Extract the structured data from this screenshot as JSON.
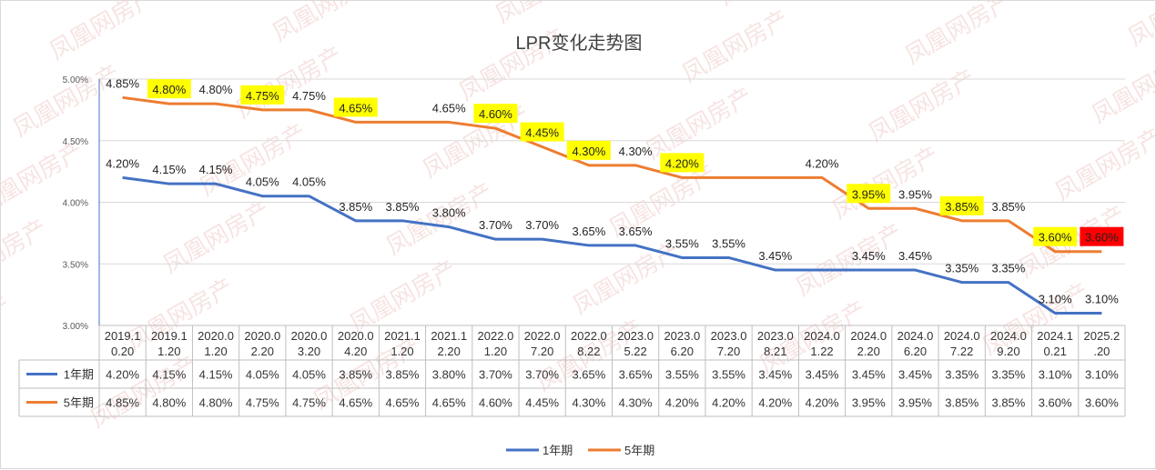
{
  "chart_data": {
    "type": "line",
    "title": "LPR变化走势图",
    "xlabel": "",
    "ylabel": "",
    "ylim": [
      3.0,
      5.0
    ],
    "yticks": [
      "3.00%",
      "3.50%",
      "4.00%",
      "4.50%",
      "5.00%"
    ],
    "categories": [
      [
        "2019.1",
        "0.20"
      ],
      [
        "2019.1",
        "1.20"
      ],
      [
        "2020.0",
        "1.20"
      ],
      [
        "2020.0",
        "2.20"
      ],
      [
        "2020.0",
        "3.20"
      ],
      [
        "2020.0",
        "4.20"
      ],
      [
        "2021.1",
        "1.20"
      ],
      [
        "2021.1",
        "2.20"
      ],
      [
        "2022.0",
        "1.20"
      ],
      [
        "2022.0",
        "7.20"
      ],
      [
        "2022.0",
        "8.22"
      ],
      [
        "2023.0",
        "5.22"
      ],
      [
        "2023.0",
        "6.20"
      ],
      [
        "2023.0",
        "7.20"
      ],
      [
        "2023.0",
        "8.21"
      ],
      [
        "2024.0",
        "1.22"
      ],
      [
        "2024.0",
        "2.20"
      ],
      [
        "2024.0",
        "6.20"
      ],
      [
        "2024.0",
        "7.22"
      ],
      [
        "2024.0",
        "9.20"
      ],
      [
        "2024.1",
        "0.21"
      ],
      [
        "2025.2",
        ".20"
      ]
    ],
    "series": [
      {
        "name": "1年期",
        "color": "#4472c4",
        "values": [
          4.2,
          4.15,
          4.15,
          4.05,
          4.05,
          3.85,
          3.85,
          3.8,
          3.7,
          3.7,
          3.65,
          3.65,
          3.55,
          3.55,
          3.45,
          3.45,
          3.45,
          3.45,
          3.35,
          3.35,
          3.1,
          3.1
        ],
        "labels": [
          "4.20%",
          "4.15%",
          "4.15%",
          "4.05%",
          "4.05%",
          "3.85%",
          "3.85%",
          "3.80%",
          "3.70%",
          "3.70%",
          "3.65%",
          "3.65%",
          "3.55%",
          "3.55%",
          "3.45%",
          "3.45%",
          "3.45%",
          "3.45%",
          "3.35%",
          "3.35%",
          "3.10%",
          "3.10%"
        ],
        "chart_labels": [
          "4.20%",
          "4.15%",
          "4.15%",
          "4.05%",
          "4.05%",
          "3.85%",
          "3.85%",
          "3.80%",
          "3.70%",
          "3.70%",
          "3.65%",
          "3.65%",
          "3.55%",
          "3.55%",
          "3.45%",
          "",
          "3.45%",
          "3.45%",
          "3.35%",
          "3.35%",
          "3.10%",
          "3.10%"
        ]
      },
      {
        "name": "5年期",
        "color": "#ed7d31",
        "values": [
          4.85,
          4.8,
          4.8,
          4.75,
          4.75,
          4.65,
          4.65,
          4.65,
          4.6,
          4.45,
          4.3,
          4.3,
          4.2,
          4.2,
          4.2,
          4.2,
          3.95,
          3.95,
          3.85,
          3.85,
          3.6,
          3.6
        ],
        "labels": [
          "4.85%",
          "4.80%",
          "4.80%",
          "4.75%",
          "4.75%",
          "4.65%",
          "4.65%",
          "4.65%",
          "4.60%",
          "4.45%",
          "4.30%",
          "4.30%",
          "4.20%",
          "4.20%",
          "4.20%",
          "4.20%",
          "3.95%",
          "3.95%",
          "3.85%",
          "3.85%",
          "3.60%",
          "3.60%"
        ],
        "chart_labels": [
          "4.85%",
          "4.80%",
          "4.80%",
          "4.75%",
          "4.75%",
          "4.65%",
          "",
          "4.65%",
          "4.60%",
          "4.45%",
          "4.30%",
          "4.30%",
          "4.20%",
          "",
          "",
          "4.20%",
          "3.95%",
          "3.95%",
          "3.85%",
          "3.85%",
          "3.60%",
          "3.60%"
        ],
        "label_highlight": [
          "",
          "yellow",
          "",
          "yellow",
          "",
          "yellow",
          "",
          "",
          "yellow",
          "yellow",
          "yellow",
          "",
          "yellow",
          "",
          "",
          "",
          "yellow",
          "",
          "yellow",
          "",
          "yellow",
          "red"
        ]
      }
    ],
    "legend": {
      "position": "bottom",
      "entries": [
        "1年期",
        "5年期"
      ]
    },
    "grid": true
  },
  "colors": {
    "yellow": "#ffff00",
    "red": "#ff0000",
    "grid": "#d9d9d9",
    "axis": "#4472c4"
  },
  "watermark": "凤凰网房产"
}
